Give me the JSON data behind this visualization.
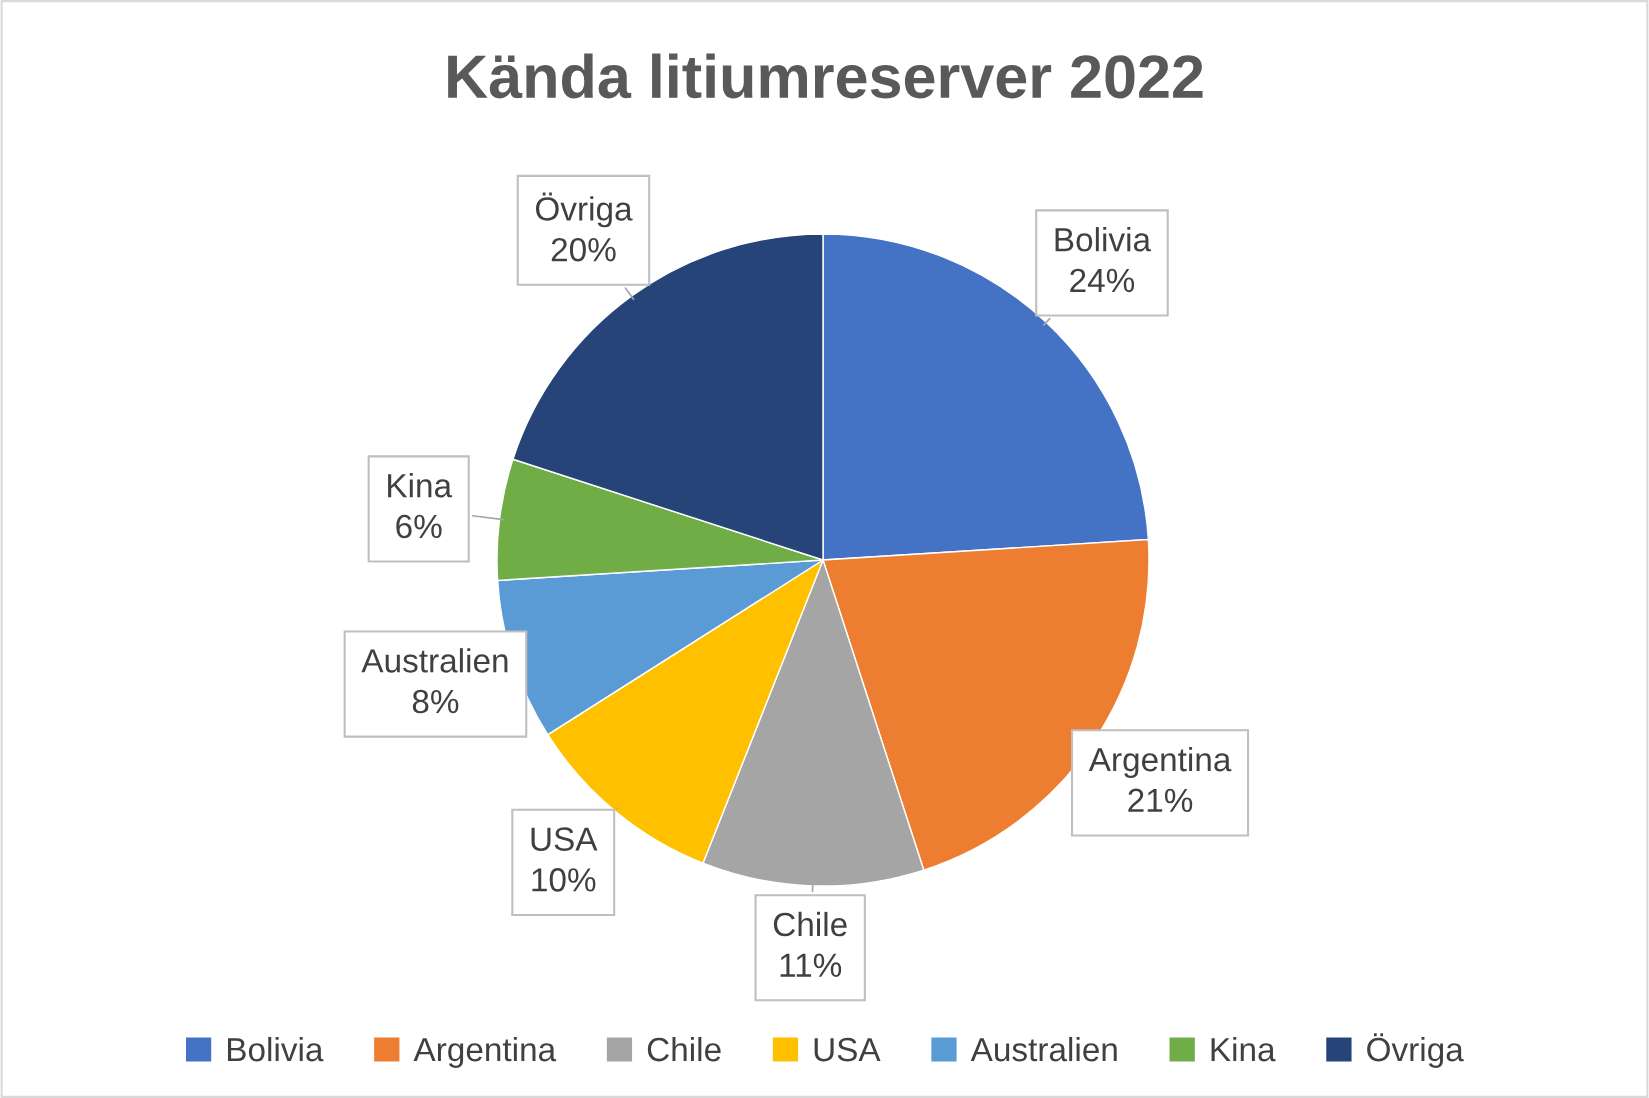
{
  "chart_data": {
    "type": "pie",
    "title": "Kända litiumreserver 2022",
    "categories": [
      "Bolivia",
      "Argentina",
      "Chile",
      "USA",
      "Australien",
      "Kina",
      "Övriga"
    ],
    "values": [
      24,
      21,
      11,
      10,
      8,
      6,
      20
    ],
    "value_labels": [
      "24%",
      "21%",
      "11%",
      "10%",
      "8%",
      "6%",
      "20%"
    ],
    "colors": [
      "#4472c4",
      "#ed7d31",
      "#a5a5a5",
      "#ffc000",
      "#5b9bd5",
      "#70ad47",
      "#264478"
    ],
    "legend": "bottom"
  }
}
